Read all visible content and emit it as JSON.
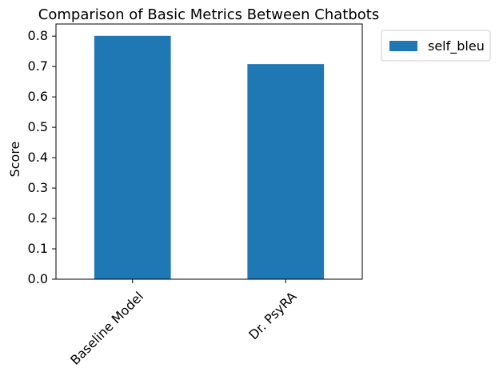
{
  "chart_data": {
    "type": "bar",
    "title": "Comparison of Basic Metrics Between Chatbots",
    "xlabel": "",
    "ylabel": "Score",
    "categories": [
      "Baseline Model",
      "Dr. PsyRA"
    ],
    "series": [
      {
        "name": "self_bleu",
        "values": [
          0.801,
          0.708
        ],
        "color": "#1f77b4"
      }
    ],
    "ylim": [
      0,
      0.84
    ],
    "yticks": [
      0.0,
      0.1,
      0.2,
      0.3,
      0.4,
      0.5,
      0.6,
      0.7,
      0.8
    ],
    "ytick_labels": [
      "0.0",
      "0.1",
      "0.2",
      "0.3",
      "0.4",
      "0.5",
      "0.6",
      "0.7",
      "0.8"
    ],
    "xtick_rotation_deg": 45,
    "grid": false,
    "legend_position": "upper right, outside plot area"
  }
}
